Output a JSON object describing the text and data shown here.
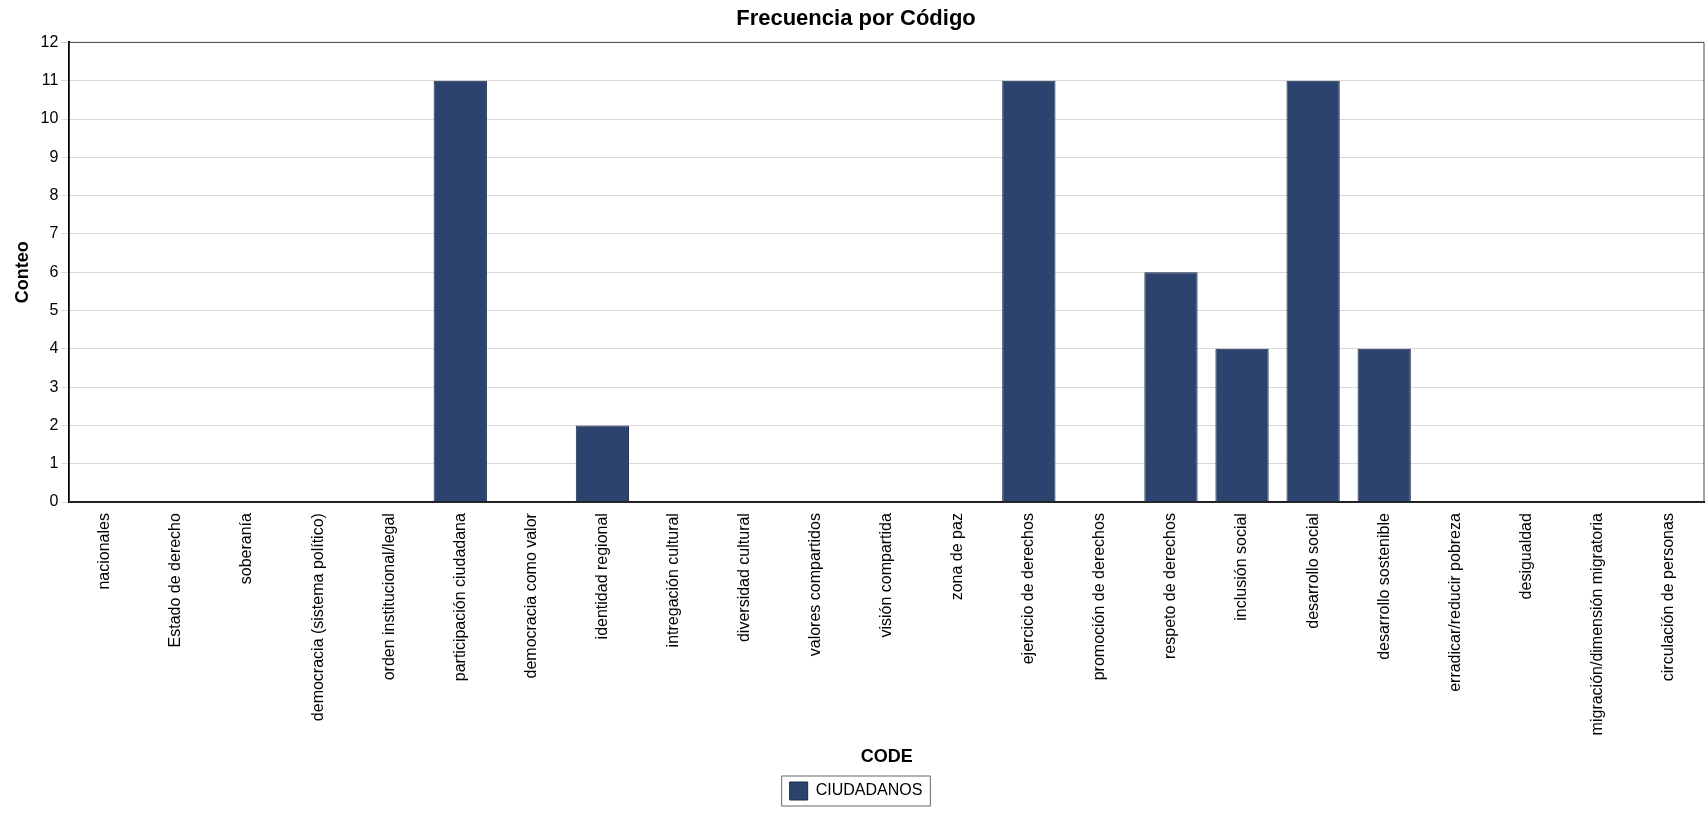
{
  "chart_data": {
    "type": "bar",
    "title": "Frecuencia por Código",
    "xlabel": "CODE",
    "ylabel": "Conteo",
    "categories": [
      "nacionales",
      "Estado de derecho",
      "soberanía",
      "democracia (sistema político)",
      "orden institucional/legal",
      "participación ciudadana",
      "democracia como valor",
      "identidad regional",
      "intregación cultural",
      "diversidad cultural",
      "valores compartidos",
      "visión compartida",
      "zona de paz",
      "ejercicio de derechos",
      "promoción de derechos",
      "respeto de derechos",
      "inclusión social",
      "desarrollo social",
      "desarrollo sostenible",
      "erradicar/reducir pobreza",
      "desigualdad",
      "migración/dimensión migratoria",
      "circulación de personas"
    ],
    "series": [
      {
        "name": "CIUDADANOS",
        "color": "#2c4370",
        "values": [
          0,
          0,
          0,
          0,
          0,
          11,
          0,
          2,
          0,
          0,
          0,
          0,
          0,
          11,
          0,
          6,
          4,
          11,
          4,
          0,
          0,
          0,
          0
        ]
      }
    ],
    "ylim": [
      0,
      12
    ],
    "yticks": [
      0,
      1,
      2,
      3,
      4,
      5,
      6,
      7,
      8,
      9,
      10,
      11,
      12
    ],
    "grid": "y",
    "legend": "bottom"
  }
}
